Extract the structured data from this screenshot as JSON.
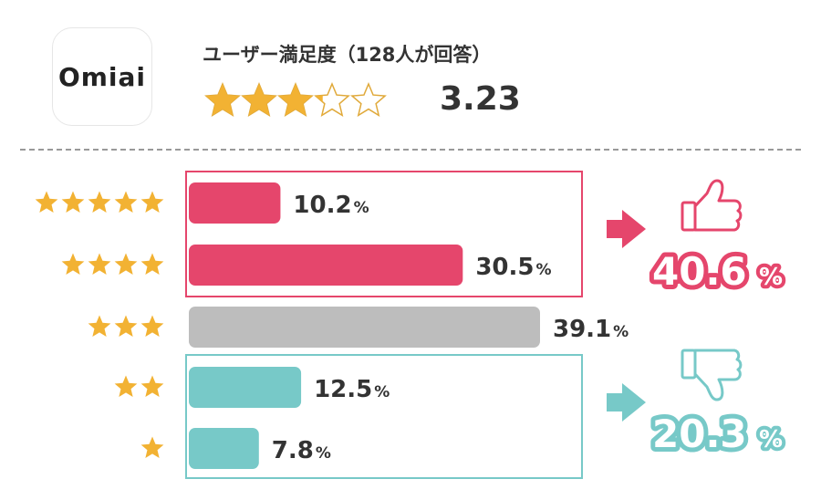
{
  "app": {
    "logo_text": "Omiai"
  },
  "header": {
    "title": "ユーザー満足度（128人が回答）",
    "score": "3.23",
    "rating_value": 3.23,
    "max_rating": 5
  },
  "summary": {
    "positive": {
      "value": "40.6",
      "unit": "%"
    },
    "negative": {
      "value": "20.3",
      "unit": "%"
    }
  },
  "colors": {
    "star": "#f2b233",
    "star_empty": "#e0a93a",
    "positive": "#e5466c",
    "neutral": "#bdbdbd",
    "negative": "#77c9c8"
  },
  "chart_data": {
    "type": "bar",
    "orientation": "horizontal",
    "categories": [
      "★★★★★",
      "★★★★",
      "★★★",
      "★★",
      "★"
    ],
    "stars": [
      5,
      4,
      3,
      2,
      1
    ],
    "values": [
      10.2,
      30.5,
      39.1,
      12.5,
      7.8
    ],
    "unit": "%",
    "bar_colors": [
      "#e5466c",
      "#e5466c",
      "#bdbdbd",
      "#77c9c8",
      "#77c9c8"
    ],
    "title": "",
    "xlabel": "",
    "ylabel": "",
    "xlim": [
      0,
      45
    ],
    "grid": false
  }
}
